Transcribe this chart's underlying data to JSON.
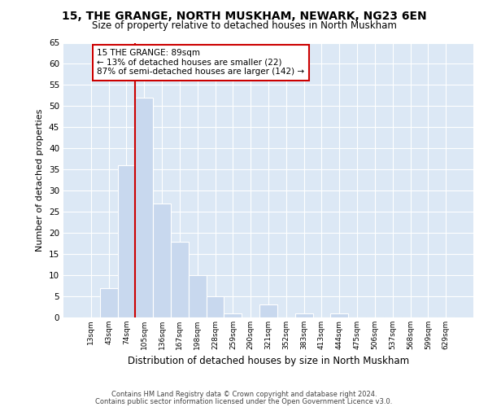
{
  "title": "15, THE GRANGE, NORTH MUSKHAM, NEWARK, NG23 6EN",
  "subtitle": "Size of property relative to detached houses in North Muskham",
  "xlabel": "Distribution of detached houses by size in North Muskham",
  "ylabel": "Number of detached properties",
  "bar_labels": [
    "13sqm",
    "43sqm",
    "74sqm",
    "105sqm",
    "136sqm",
    "167sqm",
    "198sqm",
    "228sqm",
    "259sqm",
    "290sqm",
    "321sqm",
    "352sqm",
    "383sqm",
    "413sqm",
    "444sqm",
    "475sqm",
    "506sqm",
    "537sqm",
    "568sqm",
    "599sqm",
    "629sqm"
  ],
  "bar_values": [
    0,
    7,
    36,
    52,
    27,
    18,
    10,
    5,
    1,
    0,
    3,
    0,
    1,
    0,
    1,
    0,
    0,
    0,
    0,
    0,
    0
  ],
  "bar_color": "#c8d8ee",
  "grid_color": "#ffffff",
  "bg_color": "#dce8f5",
  "fig_color": "#ffffff",
  "ylim": [
    0,
    65
  ],
  "yticks": [
    0,
    5,
    10,
    15,
    20,
    25,
    30,
    35,
    40,
    45,
    50,
    55,
    60,
    65
  ],
  "ref_line_color": "#cc0000",
  "annotation_title": "15 THE GRANGE: 89sqm",
  "annotation_line1": "← 13% of detached houses are smaller (22)",
  "annotation_line2": "87% of semi-detached houses are larger (142) →",
  "footer1": "Contains HM Land Registry data © Crown copyright and database right 2024.",
  "footer2": "Contains public sector information licensed under the Open Government Licence v3.0."
}
